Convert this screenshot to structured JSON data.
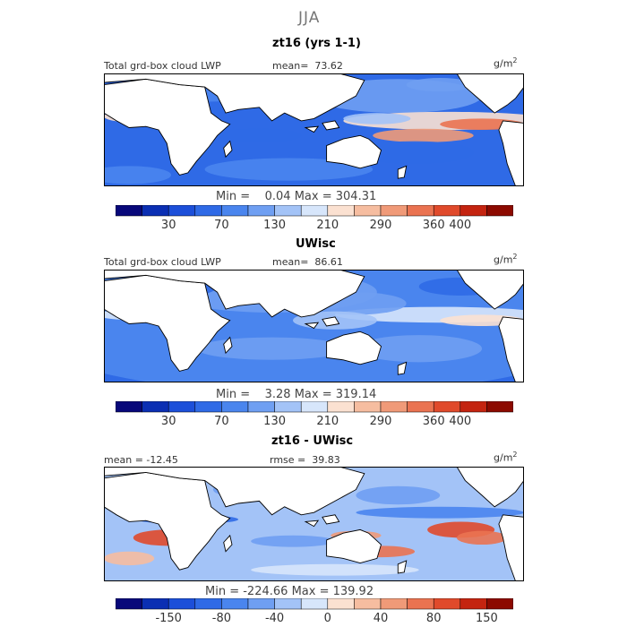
{
  "figure": {
    "title": "JJA",
    "units": "g/m",
    "units_sup": "2"
  },
  "colors": {
    "scale": [
      "#08087a",
      "#0b2fb3",
      "#1c4fd9",
      "#2f6ae6",
      "#4a85ee",
      "#6f9ff2",
      "#a3c3f7",
      "#d7e6fb",
      "#fbe1d1",
      "#f6bda0",
      "#f09a78",
      "#ea7351",
      "#e04a2b",
      "#c42410",
      "#8c0a00"
    ],
    "land": "#ffffff",
    "coast": "#000000"
  },
  "chart_data": [
    {
      "type": "heatmap",
      "subtitle": "zt16 (yrs 1-1)",
      "left_label": "Total grd-box cloud LWP",
      "stat_label": "mean=",
      "stat_value": "73.62",
      "min_label": "Min =",
      "min_value": "0.04",
      "max_label": "Max =",
      "max_value": "304.31",
      "colorbar_ticks": [
        "30",
        "70",
        "130",
        "210",
        "290",
        "360",
        "400"
      ],
      "colorbar_tick_index": [
        2,
        4,
        6,
        8,
        10,
        12,
        13
      ],
      "palette": "cool"
    },
    {
      "type": "heatmap",
      "subtitle": "UWisc",
      "left_label": "Total grd-box cloud LWP",
      "stat_label": "mean=",
      "stat_value": "86.61",
      "min_label": "Min =",
      "min_value": "3.28",
      "max_label": "Max =",
      "max_value": "319.14",
      "colorbar_ticks": [
        "30",
        "70",
        "130",
        "210",
        "290",
        "360",
        "400"
      ],
      "colorbar_tick_index": [
        2,
        4,
        6,
        8,
        10,
        12,
        13
      ],
      "palette": "cool2"
    },
    {
      "type": "heatmap",
      "subtitle": "zt16 - UWisc",
      "left_label": "mean =",
      "left_value": "-12.45",
      "stat_label": "rmse =",
      "stat_value": "39.83",
      "min_label": "Min =",
      "min_value": "-224.66",
      "max_label": "Max =",
      "max_value": "139.92",
      "colorbar_ticks": [
        "-150",
        "-80",
        "-40",
        "0",
        "40",
        "80",
        "150"
      ],
      "colorbar_tick_index": [
        2,
        4,
        6,
        8,
        10,
        12,
        14
      ],
      "palette": "diff"
    }
  ]
}
